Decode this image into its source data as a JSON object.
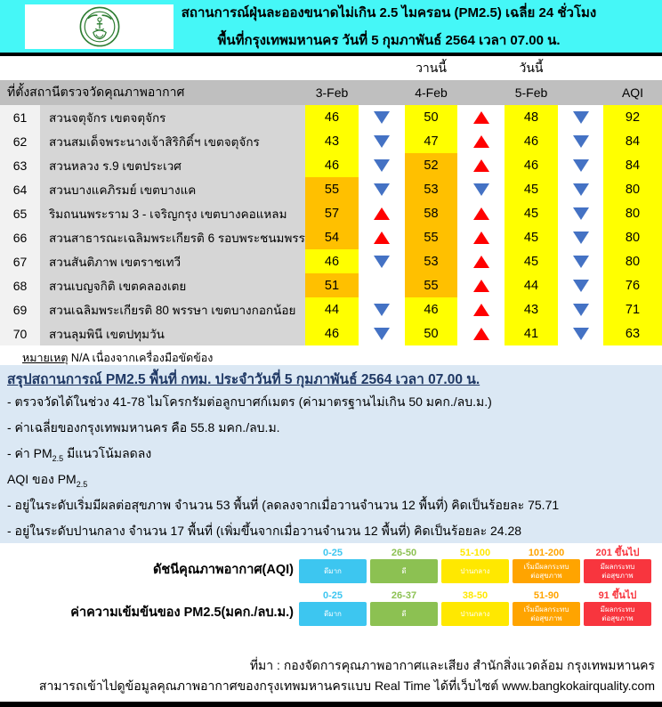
{
  "header": {
    "title_line1": "สถานการณ์ฝุ่นละอองขนาดไม่เกิน 2.5 ไมครอน (PM2.5) เฉลี่ย 24 ชั่วโมง",
    "title_line2": "พื้นที่กรุงเทพมหานคร วันที่ 5 กุมภาพันธ์ 2564 เวลา 07.00 น.",
    "logo": "bangkok-metropolitan-administration-seal"
  },
  "table": {
    "yesterday_label": "วานนี้",
    "today_label": "วันนี้",
    "columns": [
      "ที่ตั้งสถานีตรวจวัดคุณภาพอากาศ",
      "3-Feb",
      "4-Feb",
      "5-Feb",
      "AQI"
    ],
    "rows": [
      {
        "id": "61",
        "station": "สวนจตุจักร เขตจตุจักร",
        "values": [
          {
            "v": "46",
            "level": "yellow"
          },
          {
            "v": "50",
            "level": "yellow"
          },
          {
            "v": "48",
            "level": "yellow"
          }
        ],
        "arrows": [
          "down",
          "up",
          "down"
        ],
        "aqi": "92"
      },
      {
        "id": "62",
        "station": "สวนสมเด็จพระนางเจ้าสิริกิติ์ฯ เขตจตุจักร",
        "values": [
          {
            "v": "43",
            "level": "yellow"
          },
          {
            "v": "47",
            "level": "yellow"
          },
          {
            "v": "46",
            "level": "yellow"
          }
        ],
        "arrows": [
          "down",
          "up",
          "down"
        ],
        "aqi": "84"
      },
      {
        "id": "63",
        "station": "สวนหลวง ร.9 เขตประเวศ",
        "values": [
          {
            "v": "46",
            "level": "yellow"
          },
          {
            "v": "52",
            "level": "orange"
          },
          {
            "v": "46",
            "level": "yellow"
          }
        ],
        "arrows": [
          "down",
          "up",
          "down"
        ],
        "aqi": "84"
      },
      {
        "id": "64",
        "station": "สวนบางแคภิรมย์ เขตบางแค",
        "values": [
          {
            "v": "55",
            "level": "orange"
          },
          {
            "v": "53",
            "level": "orange"
          },
          {
            "v": "45",
            "level": "yellow"
          }
        ],
        "arrows": [
          "down",
          "down",
          "down"
        ],
        "aqi": "80"
      },
      {
        "id": "65",
        "station": "ริมถนนพระราม 3 - เจริญกรุง เขตบางคอแหลม",
        "values": [
          {
            "v": "57",
            "level": "orange"
          },
          {
            "v": "58",
            "level": "orange"
          },
          {
            "v": "45",
            "level": "yellow"
          }
        ],
        "arrows": [
          "up",
          "up",
          "down"
        ],
        "aqi": "80"
      },
      {
        "id": "66",
        "station": "สวนสาธารณะเฉลิมพระเกียรติ 6 รอบพระชนมพรรษา",
        "values": [
          {
            "v": "54",
            "level": "orange"
          },
          {
            "v": "55",
            "level": "orange"
          },
          {
            "v": "45",
            "level": "yellow"
          }
        ],
        "arrows": [
          "up",
          "up",
          "down"
        ],
        "aqi": "80"
      },
      {
        "id": "67",
        "station": "สวนสันติภาพ เขตราชเทวี",
        "values": [
          {
            "v": "46",
            "level": "yellow"
          },
          {
            "v": "53",
            "level": "orange"
          },
          {
            "v": "45",
            "level": "yellow"
          }
        ],
        "arrows": [
          "down",
          "up",
          "down"
        ],
        "aqi": "80"
      },
      {
        "id": "68",
        "station": "สวนเบญจกิติ  เขตคลองเตย",
        "values": [
          {
            "v": "51",
            "level": "orange"
          },
          {
            "v": "55",
            "level": "orange"
          },
          {
            "v": "44",
            "level": "yellow"
          }
        ],
        "arrows": [
          "none",
          "up",
          "down"
        ],
        "aqi": "76"
      },
      {
        "id": "69",
        "station": "สวนเฉลิมพระเกียรติ 80 พรรษา  เขตบางกอกน้อย",
        "values": [
          {
            "v": "44",
            "level": "yellow"
          },
          {
            "v": "46",
            "level": "yellow"
          },
          {
            "v": "43",
            "level": "yellow"
          }
        ],
        "arrows": [
          "down",
          "up",
          "down"
        ],
        "aqi": "71"
      },
      {
        "id": "70",
        "station": "สวนลุมพินี เขตปทุมวัน",
        "values": [
          {
            "v": "46",
            "level": "yellow"
          },
          {
            "v": "50",
            "level": "yellow"
          },
          {
            "v": "41",
            "level": "yellow"
          }
        ],
        "arrows": [
          "down",
          "up",
          "down"
        ],
        "aqi": "63"
      }
    ]
  },
  "note": {
    "label": "หมายเหตุ",
    "text": " N/A เนื่องจากเครื่องมือขัดข้อง"
  },
  "summary": {
    "heading": "สรุปสถานการณ์ PM2.5 พื้นที่ กทม. ประจำวันที่ 5 กุมภาพันธ์ 2564 เวลา 07.00 น.",
    "bullet1": "- ตรวจวัดได้ในช่วง 41-78 ไมโครกรัมต่อลูกบาศก์เมตร (ค่ามาตรฐานไม่เกิน 50 มคก./ลบ.ม.)",
    "bullet2": "- ค่าเฉลี่ยของกรุงเทพมหานคร คือ 55.8 มคก./ลบ.ม.",
    "bullet3_prefix": "- ค่า PM",
    "bullet3_sub": "2.5",
    "bullet3_suffix": "  มีแนวโน้มลดลง",
    "aqi_heading_prefix": "AQI ของ PM",
    "aqi_heading_sub": "2.5",
    "aqi_bullet1": "- อยู่ในระดับเริ่มมีผลต่อสุขภาพ จำนวน 53 พื้นที่ (ลดลงจากเมื่อวานจำนวน 12 พื้นที่) คิดเป็นร้อยละ 75.71",
    "aqi_bullet2": "- อยู่ในระดับปานกลาง จำนวน 17 พื้นที่ (เพิ่มขึ้นจากเมื่อวานจำนวน 12 พื้นที่) คิดเป็นร้อยละ 24.28"
  },
  "legend_section": {
    "legends": [
      {
        "label": "ดัชนีคุณภาพอากาศ(AQI)",
        "ranges": [
          "0-25",
          "26-50",
          "51-100",
          "101-200",
          "201 ขึ้นไป"
        ]
      },
      {
        "label": "ค่าความเข้มข้นของ PM2.5(มคก./ลบ.ม.)",
        "ranges": [
          "0-25",
          "26-37",
          "38-50",
          "51-90",
          "91 ขึ้นไป"
        ]
      }
    ],
    "levels": [
      {
        "name": "ดีมาก",
        "color": "#3DC6F0"
      },
      {
        "name": "ดี",
        "color": "#8CC152"
      },
      {
        "name": "ปานกลาง",
        "color": "#FFE800"
      },
      {
        "name": "เริ่มมีผลกระทบ\nต่อสุขภาพ",
        "color": "#FFA400"
      },
      {
        "name": "มีผลกระทบ\nต่อสุขภาพ",
        "color": "#F8353E"
      }
    ]
  },
  "footer": {
    "source_line": "ที่มา : กองจัดการคุณภาพอากาศและเสียง  สำนักสิ่งแวดล้อม  กรุงเทพมหานคร",
    "realtime_line": "สามารถเข้าไปดูข้อมูลคุณภาพอากาศของกรุงเทพมหานครแบบ Real Time ได้ที่เว็บไซต์ www.bangkokairquality.com"
  },
  "colors": {
    "header_bg": "#45F7F7",
    "summary_bg": "#DBE8F4",
    "value_yellow": "#FFFF00",
    "value_orange": "#FFC000",
    "arrow_up": "#FF0000",
    "arrow_down": "#4472C4",
    "table_header_bg": "#BFBFBF",
    "station_col_bg": "#D6D6D6",
    "num_col_bg": "#F2F2F2"
  }
}
